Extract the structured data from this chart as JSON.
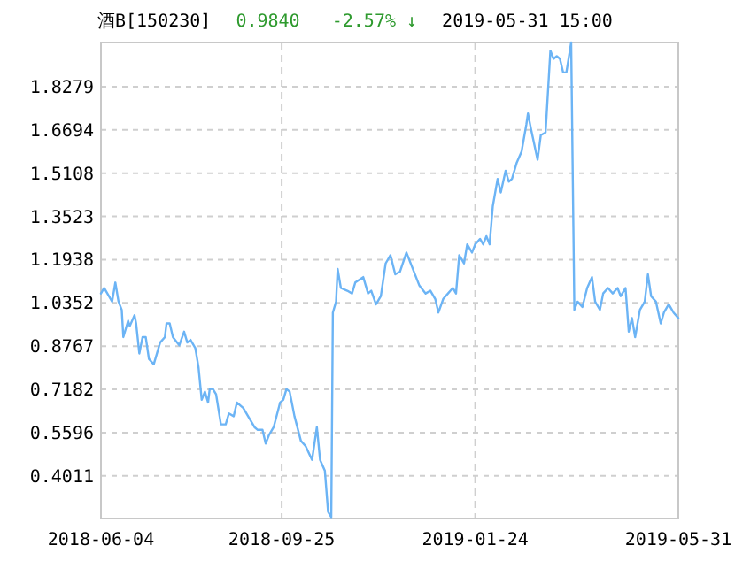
{
  "chart_data": {
    "type": "line",
    "title": "酒B[150230]",
    "subtitle": "0.9840 -2.57% ↓",
    "annotations": [
      "2019-05-31 15:00"
    ],
    "x": [
      "2018-06-04",
      "2018-06-06",
      "2018-06-11",
      "2018-06-13",
      "2018-06-15",
      "2018-06-17",
      "2018-06-18",
      "2018-06-21",
      "2018-06-22",
      "2018-06-25",
      "2018-06-26",
      "2018-06-28",
      "2018-06-30",
      "2018-07-02",
      "2018-07-04",
      "2018-07-07",
      "2018-07-11",
      "2018-07-14",
      "2018-07-15",
      "2018-07-17",
      "2018-07-19",
      "2018-07-23",
      "2018-07-26",
      "2018-07-28",
      "2018-07-30",
      "2018-08-02",
      "2018-08-04",
      "2018-08-06",
      "2018-08-08",
      "2018-08-10",
      "2018-08-11",
      "2018-08-13",
      "2018-08-15",
      "2018-08-18",
      "2018-08-21",
      "2018-08-23",
      "2018-08-26",
      "2018-08-28",
      "2018-09-01",
      "2018-09-04",
      "2018-09-08",
      "2018-09-10",
      "2018-09-13",
      "2018-09-15",
      "2018-09-17",
      "2018-09-20",
      "2018-09-24",
      "2018-09-26",
      "2018-09-28",
      "2018-09-30",
      "2018-10-03",
      "2018-10-07",
      "2018-10-10",
      "2018-10-14",
      "2018-10-17",
      "2018-10-19",
      "2018-10-22",
      "2018-10-24",
      "2018-10-26",
      "2018-10-27",
      "2018-10-29",
      "2018-10-30",
      "2018-11-01",
      "2018-11-05",
      "2018-11-08",
      "2018-11-10",
      "2018-11-15",
      "2018-11-18",
      "2018-11-20",
      "2018-11-23",
      "2018-11-26",
      "2018-11-29",
      "2018-12-02",
      "2018-12-05",
      "2018-12-08",
      "2018-12-12",
      "2018-12-16",
      "2018-12-20",
      "2018-12-24",
      "2018-12-27",
      "2018-12-30",
      "2019-01-01",
      "2019-01-04",
      "2019-01-07",
      "2019-01-10",
      "2019-01-12",
      "2019-01-14",
      "2019-01-17",
      "2019-01-19",
      "2019-01-22",
      "2019-01-24",
      "2019-01-27",
      "2019-01-29",
      "2019-01-31",
      "2019-02-02",
      "2019-02-04",
      "2019-02-07",
      "2019-02-09",
      "2019-02-12",
      "2019-02-14",
      "2019-02-16",
      "2019-02-19",
      "2019-02-22",
      "2019-02-25",
      "2019-02-26",
      "2019-02-28",
      "2019-03-04",
      "2019-03-06",
      "2019-03-09",
      "2019-03-12",
      "2019-03-14",
      "2019-03-16",
      "2019-03-18",
      "2019-03-20",
      "2019-03-22",
      "2019-03-25",
      "2019-03-27",
      "2019-03-29",
      "2019-04-01",
      "2019-04-04",
      "2019-04-07",
      "2019-04-09",
      "2019-04-12",
      "2019-04-14",
      "2019-04-17",
      "2019-04-20",
      "2019-04-23",
      "2019-04-25",
      "2019-04-28",
      "2019-04-30",
      "2019-05-02",
      "2019-05-04",
      "2019-05-07",
      "2019-05-10",
      "2019-05-12",
      "2019-05-14",
      "2019-05-17",
      "2019-05-20",
      "2019-05-22",
      "2019-05-25",
      "2019-05-28",
      "2019-05-31"
    ],
    "values": [
      1.07,
      1.09,
      1.04,
      1.11,
      1.04,
      1.01,
      0.91,
      0.97,
      0.95,
      0.99,
      0.96,
      0.85,
      0.91,
      0.91,
      0.83,
      0.81,
      0.89,
      0.91,
      0.96,
      0.96,
      0.91,
      0.88,
      0.93,
      0.89,
      0.9,
      0.87,
      0.8,
      0.68,
      0.71,
      0.67,
      0.72,
      0.72,
      0.7,
      0.59,
      0.59,
      0.63,
      0.62,
      0.67,
      0.65,
      0.62,
      0.58,
      0.57,
      0.57,
      0.52,
      0.55,
      0.58,
      0.67,
      0.68,
      0.72,
      0.71,
      0.62,
      0.53,
      0.51,
      0.46,
      0.58,
      0.46,
      0.42,
      0.27,
      0.25,
      1.0,
      1.04,
      1.16,
      1.09,
      1.08,
      1.07,
      1.11,
      1.13,
      1.07,
      1.08,
      1.03,
      1.06,
      1.18,
      1.21,
      1.14,
      1.15,
      1.22,
      1.16,
      1.1,
      1.07,
      1.08,
      1.05,
      1.0,
      1.05,
      1.07,
      1.09,
      1.07,
      1.21,
      1.18,
      1.25,
      1.22,
      1.25,
      1.27,
      1.25,
      1.28,
      1.25,
      1.39,
      1.49,
      1.44,
      1.52,
      1.48,
      1.49,
      1.55,
      1.59,
      1.69,
      1.73,
      1.67,
      1.56,
      1.65,
      1.66,
      1.96,
      1.93,
      1.94,
      1.93,
      1.88,
      1.88,
      1.99,
      1.01,
      1.04,
      1.02,
      1.09,
      1.13,
      1.04,
      1.01,
      1.07,
      1.09,
      1.07,
      1.09,
      1.06,
      1.09,
      0.93,
      0.98,
      0.91,
      1.01,
      1.04,
      1.14,
      1.06,
      1.04,
      0.96,
      1.0,
      1.03,
      1.0,
      0.98
    ],
    "color": "#6cb4f5",
    "line_style": "solid",
    "marker": "none",
    "grid": true,
    "xlim": [
      "2018-06-04",
      "2019-05-31"
    ],
    "ylim": [
      0.245,
      1.99
    ],
    "xticks": [
      {
        "value": "2018-06-04",
        "label": "2018-06-04"
      },
      {
        "value": "2018-09-25",
        "label": "2018-09-25"
      },
      {
        "value": "2019-01-24",
        "label": "2019-01-24"
      },
      {
        "value": "2019-05-31",
        "label": "2019-05-31"
      }
    ],
    "yticks": [
      0.4011,
      0.5596,
      0.7182,
      0.8767,
      1.0352,
      1.1938,
      1.3523,
      1.5108,
      1.6694,
      1.8279
    ]
  }
}
